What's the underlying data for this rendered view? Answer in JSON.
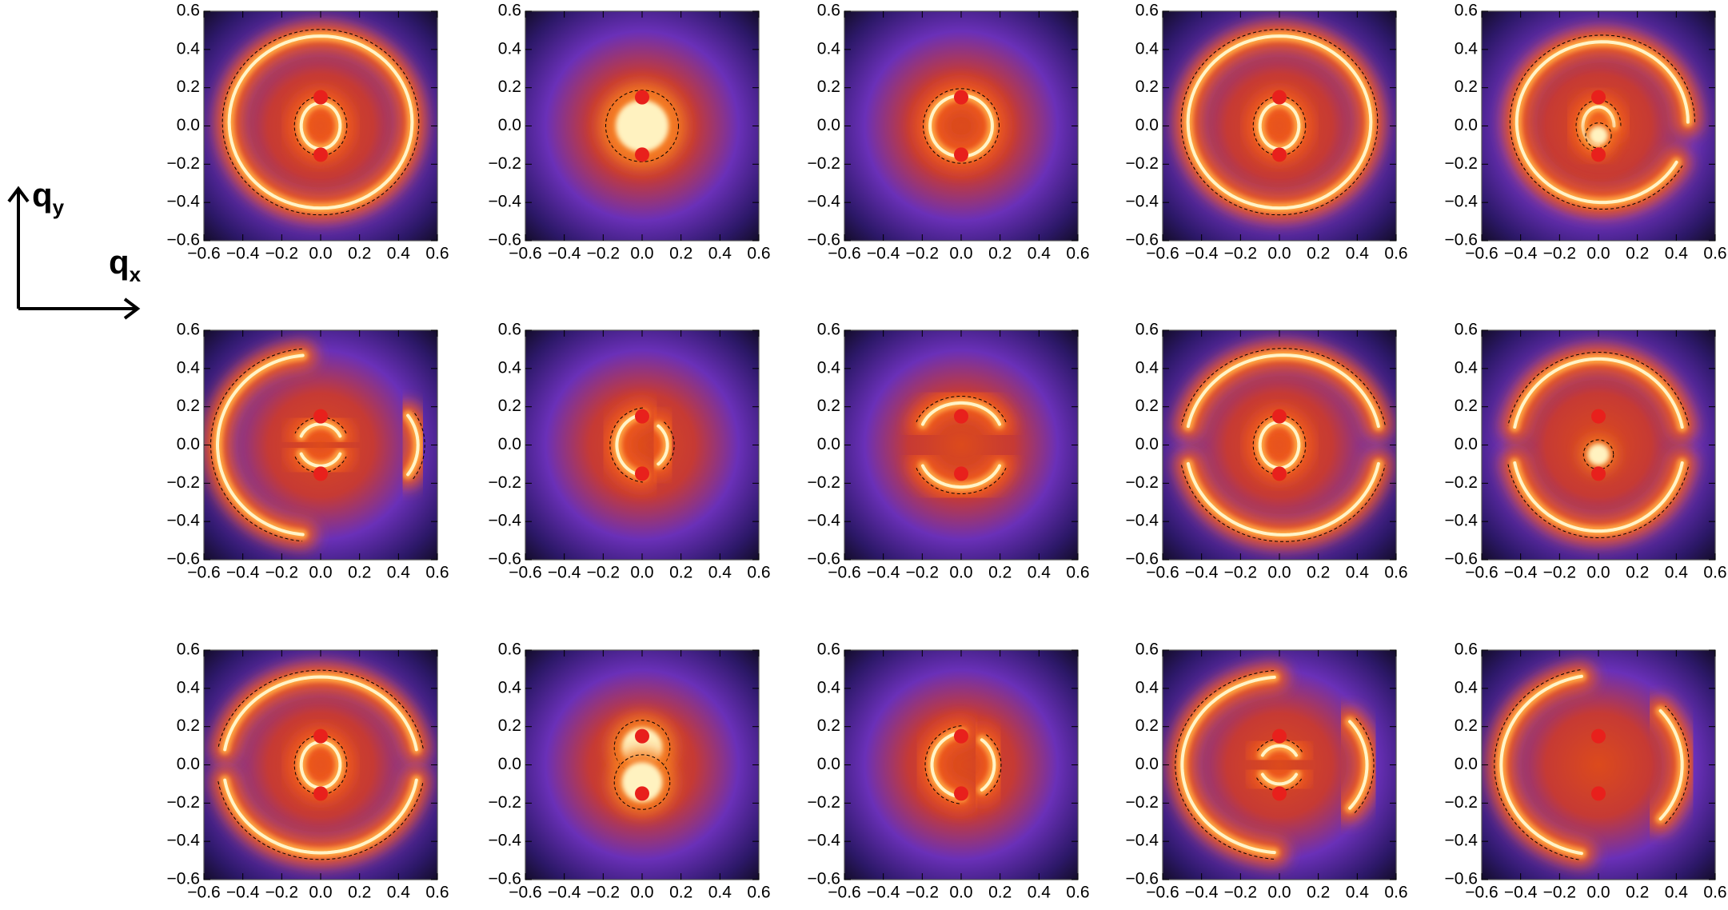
{
  "axis_labels": {
    "vertical": {
      "symbol": "q",
      "subscript": "y"
    },
    "horizontal": {
      "symbol": "q",
      "subscript": "x"
    }
  },
  "chart_data": [
    {
      "type": "heatmap",
      "xlim": [
        -0.6,
        0.6
      ],
      "ylim": [
        -0.6,
        0.6
      ],
      "xticks": [
        {
          "value": -0.6,
          "label": "−0.6"
        },
        {
          "value": -0.4,
          "label": "−0.4"
        },
        {
          "value": -0.2,
          "label": "−0.2"
        },
        {
          "value": 0,
          "label": "0.0"
        },
        0.2,
        0.4,
        0.6
      ],
      "yticks": [
        {
          "value": -0.6,
          "label": "−0.6"
        },
        {
          "value": -0.4,
          "label": "−0.4"
        },
        {
          "value": -0.2,
          "label": "−0.2"
        },
        {
          "value": 0,
          "label": "0.0"
        },
        0.2,
        0.4,
        0.6
      ],
      "series": [
        {
          "color": "#e8201c",
          "x": [
            0,
            0
          ],
          "values": [
            0.15,
            -0.15
          ]
        }
      ]
    },
    {
      "type": "heatmap",
      "xlim": [
        -0.6,
        0.6
      ],
      "ylim": [
        -0.6,
        0.6
      ],
      "xticks": [
        {
          "value": -0.6,
          "label": "−0.6"
        },
        {
          "value": -0.4,
          "label": "−0.4"
        },
        {
          "value": -0.2,
          "label": "−0.2"
        },
        {
          "value": 0,
          "label": "0.0"
        },
        0.2,
        0.4,
        0.6
      ],
      "yticks": [
        {
          "value": -0.6,
          "label": "−0.6"
        },
        {
          "value": -0.4,
          "label": "−0.4"
        },
        {
          "value": -0.2,
          "label": "−0.2"
        },
        {
          "value": 0,
          "label": "0.0"
        },
        0.2,
        0.4,
        0.6
      ],
      "series": [
        {
          "color": "#e8201c",
          "x": [
            0,
            0
          ],
          "values": [
            0.15,
            -0.15
          ]
        }
      ]
    },
    {
      "type": "heatmap",
      "xlim": [
        -0.6,
        0.6
      ],
      "ylim": [
        -0.6,
        0.6
      ],
      "xticks": [
        {
          "value": -0.6,
          "label": "−0.6"
        },
        {
          "value": -0.4,
          "label": "−0.4"
        },
        {
          "value": -0.2,
          "label": "−0.2"
        },
        {
          "value": 0,
          "label": "0.0"
        },
        0.2,
        0.4,
        0.6
      ],
      "yticks": [
        {
          "value": -0.6,
          "label": "−0.6"
        },
        {
          "value": -0.4,
          "label": "−0.4"
        },
        {
          "value": -0.2,
          "label": "−0.2"
        },
        {
          "value": 0,
          "label": "0.0"
        },
        0.2,
        0.4,
        0.6
      ],
      "series": [
        {
          "color": "#e8201c",
          "x": [
            0,
            0
          ],
          "values": [
            0.15,
            -0.15
          ]
        }
      ]
    },
    {
      "type": "heatmap",
      "xlim": [
        -0.6,
        0.6
      ],
      "ylim": [
        -0.6,
        0.6
      ],
      "xticks": [
        {
          "value": -0.6,
          "label": "−0.6"
        },
        {
          "value": -0.4,
          "label": "−0.4"
        },
        {
          "value": -0.2,
          "label": "−0.2"
        },
        {
          "value": 0,
          "label": "0.0"
        },
        0.2,
        0.4,
        0.6
      ],
      "yticks": [
        {
          "value": -0.6,
          "label": "−0.6"
        },
        {
          "value": -0.4,
          "label": "−0.4"
        },
        {
          "value": -0.2,
          "label": "−0.2"
        },
        {
          "value": 0,
          "label": "0.0"
        },
        0.2,
        0.4,
        0.6
      ],
      "series": [
        {
          "color": "#e8201c",
          "x": [
            0,
            0
          ],
          "values": [
            0.15,
            -0.15
          ]
        }
      ]
    },
    {
      "type": "heatmap",
      "xlim": [
        -0.6,
        0.6
      ],
      "ylim": [
        -0.6,
        0.6
      ],
      "xticks": [
        {
          "value": -0.6,
          "label": "−0.6"
        },
        {
          "value": -0.4,
          "label": "−0.4"
        },
        {
          "value": -0.2,
          "label": "−0.2"
        },
        {
          "value": 0,
          "label": "0.0"
        },
        0.2,
        0.4,
        0.6
      ],
      "yticks": [
        {
          "value": -0.6,
          "label": "−0.6"
        },
        {
          "value": -0.4,
          "label": "−0.4"
        },
        {
          "value": -0.2,
          "label": "−0.2"
        },
        {
          "value": 0,
          "label": "0.0"
        },
        0.2,
        0.4,
        0.6
      ],
      "series": [
        {
          "color": "#e8201c",
          "x": [
            0,
            0
          ],
          "values": [
            0.15,
            -0.15
          ]
        }
      ]
    },
    {
      "type": "heatmap",
      "xlim": [
        -0.6,
        0.6
      ],
      "ylim": [
        -0.6,
        0.6
      ],
      "xticks": [
        {
          "value": -0.6,
          "label": "−0.6"
        },
        {
          "value": -0.4,
          "label": "−0.4"
        },
        {
          "value": -0.2,
          "label": "−0.2"
        },
        {
          "value": 0,
          "label": "0.0"
        },
        0.2,
        0.4,
        0.6
      ],
      "yticks": [
        {
          "value": -0.6,
          "label": "−0.6"
        },
        {
          "value": -0.4,
          "label": "−0.4"
        },
        {
          "value": -0.2,
          "label": "−0.2"
        },
        {
          "value": 0,
          "label": "0.0"
        },
        0.2,
        0.4,
        0.6
      ],
      "series": [
        {
          "color": "#e8201c",
          "x": [
            0,
            0
          ],
          "values": [
            0.15,
            -0.15
          ]
        }
      ]
    },
    {
      "type": "heatmap",
      "xlim": [
        -0.6,
        0.6
      ],
      "ylim": [
        -0.6,
        0.6
      ],
      "xticks": [
        {
          "value": -0.6,
          "label": "−0.6"
        },
        {
          "value": -0.4,
          "label": "−0.4"
        },
        {
          "value": -0.2,
          "label": "−0.2"
        },
        {
          "value": 0,
          "label": "0.0"
        },
        0.2,
        0.4,
        0.6
      ],
      "yticks": [
        {
          "value": -0.6,
          "label": "−0.6"
        },
        {
          "value": -0.4,
          "label": "−0.4"
        },
        {
          "value": -0.2,
          "label": "−0.2"
        },
        {
          "value": 0,
          "label": "0.0"
        },
        0.2,
        0.4,
        0.6
      ],
      "series": [
        {
          "color": "#e8201c",
          "x": [
            0,
            0
          ],
          "values": [
            0.15,
            -0.15
          ]
        }
      ]
    },
    {
      "type": "heatmap",
      "xlim": [
        -0.6,
        0.6
      ],
      "ylim": [
        -0.6,
        0.6
      ],
      "xticks": [
        {
          "value": -0.6,
          "label": "−0.6"
        },
        {
          "value": -0.4,
          "label": "−0.4"
        },
        {
          "value": -0.2,
          "label": "−0.2"
        },
        {
          "value": 0,
          "label": "0.0"
        },
        0.2,
        0.4,
        0.6
      ],
      "yticks": [
        {
          "value": -0.6,
          "label": "−0.6"
        },
        {
          "value": -0.4,
          "label": "−0.4"
        },
        {
          "value": -0.2,
          "label": "−0.2"
        },
        {
          "value": 0,
          "label": "0.0"
        },
        0.2,
        0.4,
        0.6
      ],
      "series": [
        {
          "color": "#e8201c",
          "x": [
            0,
            0
          ],
          "values": [
            0.15,
            -0.15
          ]
        }
      ]
    },
    {
      "type": "heatmap",
      "xlim": [
        -0.6,
        0.6
      ],
      "ylim": [
        -0.6,
        0.6
      ],
      "xticks": [
        {
          "value": -0.6,
          "label": "−0.6"
        },
        {
          "value": -0.4,
          "label": "−0.4"
        },
        {
          "value": -0.2,
          "label": "−0.2"
        },
        {
          "value": 0,
          "label": "0.0"
        },
        0.2,
        0.4,
        0.6
      ],
      "yticks": [
        {
          "value": -0.6,
          "label": "−0.6"
        },
        {
          "value": -0.4,
          "label": "−0.4"
        },
        {
          "value": -0.2,
          "label": "−0.2"
        },
        {
          "value": 0,
          "label": "0.0"
        },
        0.2,
        0.4,
        0.6
      ],
      "series": [
        {
          "color": "#e8201c",
          "x": [
            0,
            0
          ],
          "values": [
            0.15,
            -0.15
          ]
        }
      ]
    },
    {
      "type": "heatmap",
      "xlim": [
        -0.6,
        0.6
      ],
      "ylim": [
        -0.6,
        0.6
      ],
      "xticks": [
        {
          "value": -0.6,
          "label": "−0.6"
        },
        {
          "value": -0.4,
          "label": "−0.4"
        },
        {
          "value": -0.2,
          "label": "−0.2"
        },
        {
          "value": 0,
          "label": "0.0"
        },
        0.2,
        0.4,
        0.6
      ],
      "yticks": [
        {
          "value": -0.6,
          "label": "−0.6"
        },
        {
          "value": -0.4,
          "label": "−0.4"
        },
        {
          "value": -0.2,
          "label": "−0.2"
        },
        {
          "value": 0,
          "label": "0.0"
        },
        0.2,
        0.4,
        0.6
      ],
      "series": [
        {
          "color": "#e8201c",
          "x": [
            0,
            0
          ],
          "values": [
            0.15,
            -0.15
          ]
        }
      ]
    },
    {
      "type": "heatmap",
      "xlim": [
        -0.6,
        0.6
      ],
      "ylim": [
        -0.6,
        0.6
      ],
      "xticks": [
        {
          "value": -0.6,
          "label": "−0.6"
        },
        {
          "value": -0.4,
          "label": "−0.4"
        },
        {
          "value": -0.2,
          "label": "−0.2"
        },
        {
          "value": 0,
          "label": "0.0"
        },
        0.2,
        0.4,
        0.6
      ],
      "yticks": [
        {
          "value": -0.6,
          "label": "−0.6"
        },
        {
          "value": -0.4,
          "label": "−0.4"
        },
        {
          "value": -0.2,
          "label": "−0.2"
        },
        {
          "value": 0,
          "label": "0.0"
        },
        0.2,
        0.4,
        0.6
      ],
      "series": [
        {
          "color": "#e8201c",
          "x": [
            0,
            0
          ],
          "values": [
            0.15,
            -0.15
          ]
        }
      ]
    },
    {
      "type": "heatmap",
      "xlim": [
        -0.6,
        0.6
      ],
      "ylim": [
        -0.6,
        0.6
      ],
      "xticks": [
        {
          "value": -0.6,
          "label": "−0.6"
        },
        {
          "value": -0.4,
          "label": "−0.4"
        },
        {
          "value": -0.2,
          "label": "−0.2"
        },
        {
          "value": 0,
          "label": "0.0"
        },
        0.2,
        0.4,
        0.6
      ],
      "yticks": [
        {
          "value": -0.6,
          "label": "−0.6"
        },
        {
          "value": -0.4,
          "label": "−0.4"
        },
        {
          "value": -0.2,
          "label": "−0.2"
        },
        {
          "value": 0,
          "label": "0.0"
        },
        0.2,
        0.4,
        0.6
      ],
      "series": [
        {
          "color": "#e8201c",
          "x": [
            0,
            0
          ],
          "values": [
            0.15,
            -0.15
          ]
        }
      ]
    },
    {
      "type": "heatmap",
      "xlim": [
        -0.6,
        0.6
      ],
      "ylim": [
        -0.6,
        0.6
      ],
      "xticks": [
        {
          "value": -0.6,
          "label": "−0.6"
        },
        {
          "value": -0.4,
          "label": "−0.4"
        },
        {
          "value": -0.2,
          "label": "−0.2"
        },
        {
          "value": 0,
          "label": "0.0"
        },
        0.2,
        0.4,
        0.6
      ],
      "yticks": [
        {
          "value": -0.6,
          "label": "−0.6"
        },
        {
          "value": -0.4,
          "label": "−0.4"
        },
        {
          "value": -0.2,
          "label": "−0.2"
        },
        {
          "value": 0,
          "label": "0.0"
        },
        0.2,
        0.4,
        0.6
      ],
      "series": [
        {
          "color": "#e8201c",
          "x": [
            0,
            0
          ],
          "values": [
            0.15,
            -0.15
          ]
        }
      ]
    },
    {
      "type": "heatmap",
      "xlim": [
        -0.6,
        0.6
      ],
      "ylim": [
        -0.6,
        0.6
      ],
      "xticks": [
        {
          "value": -0.6,
          "label": "−0.6"
        },
        {
          "value": -0.4,
          "label": "−0.4"
        },
        {
          "value": -0.2,
          "label": "−0.2"
        },
        {
          "value": 0,
          "label": "0.0"
        },
        0.2,
        0.4,
        0.6
      ],
      "yticks": [
        {
          "value": -0.6,
          "label": "−0.6"
        },
        {
          "value": -0.4,
          "label": "−0.4"
        },
        {
          "value": -0.2,
          "label": "−0.2"
        },
        {
          "value": 0,
          "label": "0.0"
        },
        0.2,
        0.4,
        0.6
      ],
      "series": [
        {
          "color": "#e8201c",
          "x": [
            0,
            0
          ],
          "values": [
            0.15,
            -0.15
          ]
        }
      ]
    },
    {
      "type": "heatmap",
      "xlim": [
        -0.6,
        0.6
      ],
      "ylim": [
        -0.6,
        0.6
      ],
      "xticks": [
        {
          "value": -0.6,
          "label": "−0.6"
        },
        {
          "value": -0.4,
          "label": "−0.4"
        },
        {
          "value": -0.2,
          "label": "−0.2"
        },
        {
          "value": 0,
          "label": "0.0"
        },
        0.2,
        0.4,
        0.6
      ],
      "yticks": [
        {
          "value": -0.6,
          "label": "−0.6"
        },
        {
          "value": -0.4,
          "label": "−0.4"
        },
        {
          "value": -0.2,
          "label": "−0.2"
        },
        {
          "value": 0,
          "label": "0.0"
        },
        0.2,
        0.4,
        0.6
      ],
      "series": [
        {
          "color": "#e8201c",
          "x": [
            0,
            0
          ],
          "values": [
            0.15,
            -0.15
          ]
        }
      ]
    }
  ]
}
